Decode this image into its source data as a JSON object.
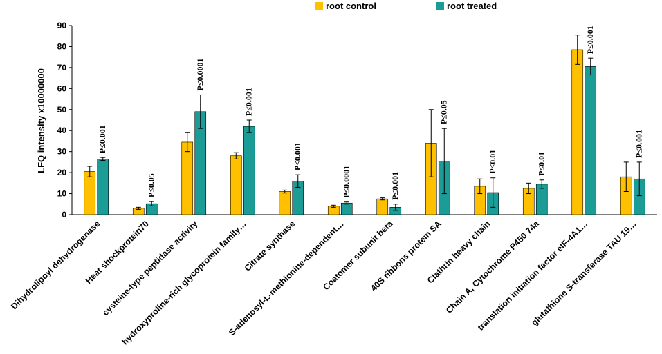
{
  "chart_data": {
    "type": "bar",
    "title": "",
    "xlabel": "",
    "ylabel": "LFQ intensity  x10000000",
    "ylim": [
      0,
      90
    ],
    "yticks": [
      0,
      10,
      20,
      30,
      40,
      50,
      60,
      70,
      80,
      90
    ],
    "grid": false,
    "legend_position": "top-right",
    "categories": [
      "Dihydrolipoyl dehydrogenase",
      "Heat shockprotein70",
      "cysteine-type peptidase activity",
      "hydroxyproline-rich glycoprotein family…",
      "Citrate synthase",
      "S-adenosyl-L-methionine-dependent…",
      "Coatomer subunit beta",
      "40S ribbons protein SA",
      "Clathrin heavy chain",
      "Chain A, Cytochrome P450 74a",
      "translation initiation factor eIF-4A1…",
      "glutathione S-transferase TAU 19…"
    ],
    "series": [
      {
        "name": "root control",
        "color": "#FFC000",
        "values": [
          20.5,
          3,
          34.5,
          28,
          11,
          4,
          7.5,
          34,
          13.5,
          12.5,
          78.5,
          18
        ],
        "errors": [
          2.5,
          0.5,
          4.5,
          1.5,
          0.7,
          0.5,
          0.5,
          16,
          3.5,
          2.5,
          7,
          7
        ]
      },
      {
        "name": "root treated",
        "color": "#1B9C96",
        "values": [
          26.5,
          5.2,
          49,
          42,
          16,
          5.5,
          3.5,
          25.5,
          10.5,
          14.5,
          70.5,
          17
        ],
        "errors": [
          0.7,
          1,
          8,
          3,
          3,
          0.5,
          1.5,
          15.5,
          7,
          2,
          4,
          8
        ]
      }
    ],
    "annotations": [
      "P≤0.001",
      "P≤0.05",
      "P≤0.0001",
      "P≤0.001",
      "P≤0.001",
      "P≤0.0001",
      "P≤0.001",
      "P≤0.05",
      "P≤0.01",
      "P≤0.01",
      "P≤0.001",
      "P≤0.001"
    ]
  }
}
